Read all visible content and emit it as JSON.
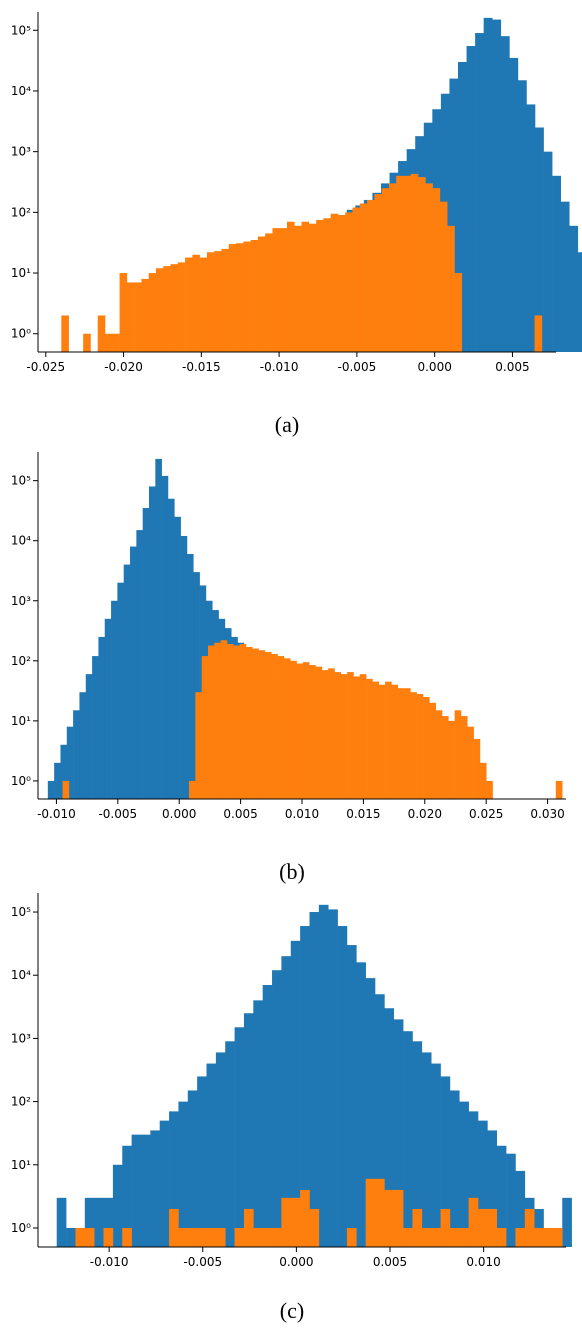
{
  "colors": {
    "blue": "#1f77b4",
    "orange": "#ff7f0e"
  },
  "chart_data": [
    {
      "type": "bar",
      "yscale": "log",
      "grid": false,
      "caption": "(a)",
      "xlim": [
        -0.0255,
        0.0078
      ],
      "ylim": [
        0.5,
        200000
      ],
      "xticks": [
        "-0.025",
        "-0.020",
        "-0.015",
        "-0.010",
        "-0.005",
        "0.000",
        "0.005"
      ],
      "xtick_values": [
        -0.025,
        -0.02,
        -0.015,
        -0.01,
        -0.005,
        0.0,
        0.005
      ],
      "yticks": [
        "10⁰",
        "10¹",
        "10²",
        "10³",
        "10⁴",
        "10⁵"
      ],
      "ytick_values": [
        1,
        10,
        100,
        1000,
        10000,
        100000
      ],
      "series": [
        {
          "color": "blue",
          "bins": {
            "start": -0.0095,
            "width": 0.00055
          },
          "counts": [
            45,
            50,
            55,
            60,
            70,
            80,
            90,
            110,
            130,
            160,
            210,
            300,
            450,
            700,
            1100,
            1800,
            3000,
            5000,
            9000,
            16000,
            30000,
            55000,
            90000,
            160000,
            150000,
            80000,
            35000,
            15000,
            6000,
            2500,
            1000,
            400,
            150,
            60,
            22,
            8,
            2
          ]
        },
        {
          "color": "orange",
          "bins": {
            "start": -0.024,
            "width": 0.000468
          },
          "counts": [
            2,
            0,
            0,
            1,
            0,
            2,
            1,
            1,
            10,
            7,
            7,
            8,
            10,
            12,
            13,
            14,
            15,
            18,
            20,
            18,
            22,
            23,
            25,
            30,
            31,
            33,
            35,
            40,
            45,
            55,
            55,
            70,
            60,
            70,
            65,
            75,
            80,
            95,
            90,
            100,
            120,
            140,
            160,
            200,
            250,
            300,
            400,
            400,
            430,
            380,
            300,
            250,
            150,
            60,
            10,
            0,
            0,
            0,
            0,
            0,
            0,
            0,
            0,
            0,
            0,
            2
          ]
        }
      ]
    },
    {
      "type": "bar",
      "yscale": "log",
      "grid": false,
      "caption": "(b)",
      "xlim": [
        -0.0115,
        0.0315
      ],
      "ylim": [
        0.5,
        300000
      ],
      "xticks": [
        "-0.010",
        "-0.005",
        "0.000",
        "0.005",
        "0.010",
        "0.015",
        "0.020",
        "0.025",
        "0.030"
      ],
      "xtick_values": [
        -0.01,
        -0.005,
        0.0,
        0.005,
        0.01,
        0.015,
        0.02,
        0.025,
        0.03
      ],
      "yticks": [
        "10⁰",
        "10¹",
        "10²",
        "10³",
        "10⁴",
        "10⁵"
      ],
      "ytick_values": [
        1,
        10,
        100,
        1000,
        10000,
        100000
      ],
      "series": [
        {
          "color": "blue",
          "bins": {
            "start": -0.0107,
            "width": 0.000515
          },
          "counts": [
            1,
            2,
            4,
            8,
            15,
            30,
            60,
            120,
            250,
            500,
            1000,
            2000,
            4000,
            8000,
            15000,
            35000,
            80000,
            230000,
            120000,
            50000,
            25000,
            12000,
            6000,
            3000,
            1800,
            1000,
            700,
            500,
            350,
            250,
            200,
            150,
            120,
            100,
            80,
            60,
            45,
            35
          ]
        },
        {
          "color": "orange",
          "bins": {
            "start": -0.0095,
            "width": 0.000515
          },
          "counts": [
            1,
            0,
            0,
            0,
            0,
            0,
            0,
            0,
            0,
            0,
            0,
            0,
            0,
            0,
            0,
            0,
            0,
            0,
            0,
            0,
            1,
            30,
            120,
            180,
            200,
            220,
            190,
            180,
            190,
            170,
            160,
            150,
            140,
            130,
            120,
            110,
            100,
            90,
            95,
            85,
            80,
            70,
            75,
            65,
            60,
            65,
            55,
            60,
            50,
            45,
            40,
            45,
            40,
            35,
            35,
            30,
            28,
            25,
            20,
            15,
            12,
            10,
            15,
            12,
            8,
            5,
            2,
            1,
            0,
            0,
            0,
            0,
            0,
            0,
            0,
            0,
            0,
            0,
            1
          ]
        }
      ]
    },
    {
      "type": "bar",
      "yscale": "log",
      "grid": false,
      "caption": "(c)",
      "xlim": [
        -0.0138,
        0.0144
      ],
      "ylim": [
        0.5,
        200000
      ],
      "xticks": [
        "-0.010",
        "-0.005",
        "0.000",
        "0.005",
        "0.010"
      ],
      "xtick_values": [
        -0.01,
        -0.005,
        0.0,
        0.005,
        0.01
      ],
      "yticks": [
        "10⁰",
        "10¹",
        "10²",
        "10³",
        "10⁴",
        "10⁵"
      ],
      "ytick_values": [
        1,
        10,
        100,
        1000,
        10000,
        100000
      ],
      "series": [
        {
          "color": "blue",
          "bins": {
            "start": -0.0128,
            "width": 0.0005
          },
          "counts": [
            3,
            1,
            1,
            3,
            3,
            3,
            10,
            20,
            30,
            30,
            35,
            50,
            70,
            100,
            150,
            250,
            400,
            600,
            900,
            1500,
            2500,
            4000,
            7000,
            12000,
            20000,
            35000,
            60000,
            100000,
            130000,
            110000,
            60000,
            30000,
            16000,
            9000,
            5000,
            3000,
            2000,
            1300,
            900,
            600,
            400,
            250,
            150,
            100,
            70,
            50,
            35,
            20,
            15,
            8,
            3,
            2,
            1,
            1,
            3
          ]
        },
        {
          "color": "orange",
          "bins": {
            "start": -0.0118,
            "width": 0.0005
          },
          "counts": [
            1,
            1,
            0,
            1,
            0,
            1,
            0,
            0,
            0,
            0,
            2,
            1,
            1,
            1,
            1,
            1,
            0,
            1,
            2,
            1,
            1,
            1,
            3,
            3,
            4,
            2,
            0,
            0,
            0,
            1,
            0,
            6,
            6,
            4,
            4,
            1,
            2,
            1,
            1,
            2,
            1,
            1,
            3,
            2,
            2,
            1,
            0,
            1,
            2,
            1,
            1,
            1
          ]
        }
      ]
    }
  ]
}
